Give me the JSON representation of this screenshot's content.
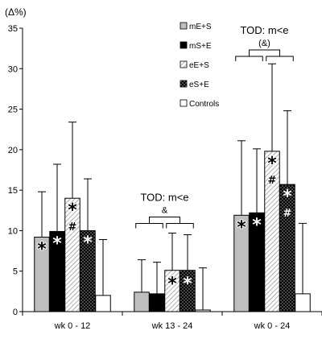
{
  "chart_data": {
    "type": "bar",
    "ylabel": "(Δ%)",
    "ylim": [
      0,
      35
    ],
    "yticks": [
      0,
      5,
      10,
      15,
      20,
      25,
      30,
      35
    ],
    "grid": false,
    "legend_position": "top-center",
    "categories": [
      "wk 0 - 12",
      "wk 13 - 24",
      "wk 0 - 24"
    ],
    "series": [
      {
        "name": "mE+S",
        "fill": "gray",
        "color": "#bfbfbf",
        "values": [
          9.2,
          2.4,
          11.9
        ],
        "errors": [
          5.6,
          4.0,
          9.2
        ],
        "marks": [
          [
            "*"
          ],
          [],
          [
            "*"
          ]
        ]
      },
      {
        "name": "mS+E",
        "fill": "solid",
        "color": "#000000",
        "values": [
          9.9,
          2.2,
          12.2
        ],
        "errors": [
          8.3,
          3.9,
          7.9
        ],
        "marks": [
          [
            "*"
          ],
          [],
          [
            "*"
          ]
        ]
      },
      {
        "name": "eE+S",
        "fill": "hatch",
        "color": "#ffffff",
        "values": [
          14.0,
          5.1,
          19.8
        ],
        "errors": [
          9.4,
          4.6,
          10.8
        ],
        "marks": [
          [
            "*",
            "#"
          ],
          [
            "*"
          ],
          [
            "*",
            "#"
          ]
        ]
      },
      {
        "name": "eS+E",
        "fill": "dots",
        "color": "#000000",
        "values": [
          10.0,
          5.1,
          15.7
        ],
        "errors": [
          6.4,
          4.4,
          9.1
        ],
        "marks": [
          [
            "*"
          ],
          [
            "*"
          ],
          [
            "*",
            "#"
          ]
        ]
      },
      {
        "name": "Controls",
        "fill": "white",
        "color": "#ffffff",
        "values": [
          2.0,
          0.2,
          2.2
        ],
        "errors": [
          6.9,
          5.2,
          8.7
        ],
        "marks": [
          [],
          [],
          []
        ]
      }
    ],
    "annotations": [
      {
        "category_index": 1,
        "label": "TOD: m<e",
        "sub": "&"
      },
      {
        "category_index": 2,
        "label": "TOD: m<e",
        "sub": "(&)"
      }
    ]
  }
}
